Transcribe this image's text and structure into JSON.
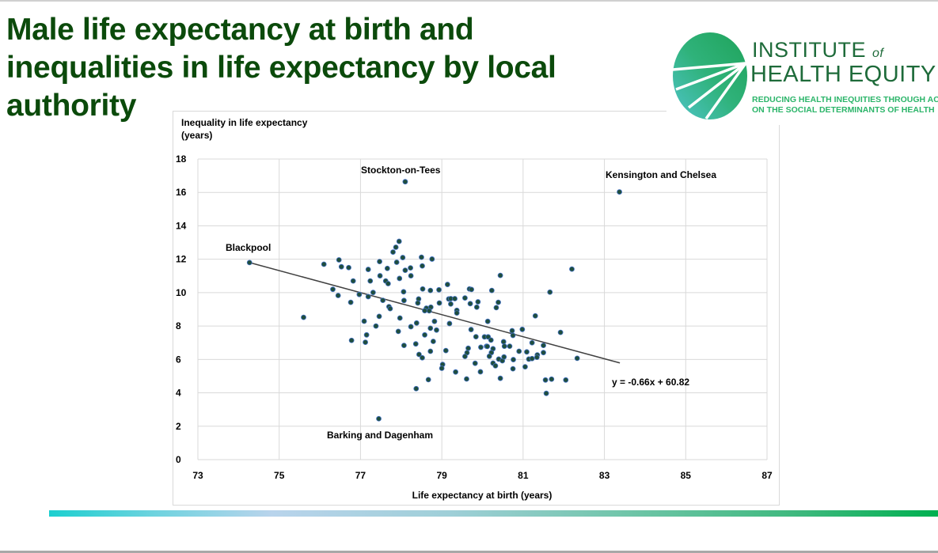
{
  "slide": {
    "title": "Male life expectancy at birth and inequalities in life expectancy by local authority"
  },
  "logo": {
    "line1": "INSTITUTE",
    "line1_of": "of",
    "line2": "HEALTH EQUITY",
    "tagline1": "REDUCING HEALTH  INEQUITIES THROUGH ACTION",
    "tagline2": "ON THE SOCIAL DETERMINANTS OF HEALTH",
    "colors": {
      "dark": "#1e6b3a",
      "accent": "#2cb56a"
    }
  },
  "colors": {
    "title": "#0b4a0b",
    "marker": "#1f4e3d",
    "marker_edge": "#4472c4",
    "trendline": "#404040",
    "gridline": "#d9d9d9",
    "footer_gradient": [
      "#1ccfcf",
      "#b9d4ec",
      "#00b050"
    ]
  },
  "chart_data": {
    "type": "scatter",
    "title": "",
    "xlabel": "Life expectancy at birth (years)",
    "ylabel": "Inequality in life expectancy (years)",
    "ylabel_lines": [
      "Inequality in life expectancy",
      "(years)"
    ],
    "xlim": [
      73,
      87
    ],
    "ylim": [
      0,
      18
    ],
    "xticks": [
      73,
      75,
      77,
      79,
      81,
      83,
      85,
      87
    ],
    "yticks": [
      0,
      2,
      4,
      6,
      8,
      10,
      12,
      14,
      16,
      18
    ],
    "grid": true,
    "legend": "none",
    "trendline": {
      "slope": -0.66,
      "intercept": 60.82,
      "x_range": [
        74.27,
        83.38
      ],
      "label": "y = -0.66x + 60.82"
    },
    "annotations": [
      {
        "text": "Stockton-on-Tees",
        "x": 78.1,
        "y": 16.64
      },
      {
        "text": "Kensington and Chelsea",
        "x": 83.37,
        "y": 16.03
      },
      {
        "text": "Blackpool",
        "x": 74.27,
        "y": 11.8
      },
      {
        "text": "Barking and Dagenham",
        "x": 77.45,
        "y": 2.45
      }
    ],
    "points": [
      [
        74.27,
        11.8
      ],
      [
        78.1,
        16.64
      ],
      [
        83.37,
        16.03
      ],
      [
        77.45,
        2.45
      ],
      [
        75.6,
        8.52
      ],
      [
        76.1,
        11.7
      ],
      [
        76.47,
        11.96
      ],
      [
        76.53,
        11.55
      ],
      [
        76.71,
        11.5
      ],
      [
        76.82,
        10.7
      ],
      [
        76.32,
        10.2
      ],
      [
        76.45,
        9.83
      ],
      [
        76.97,
        9.89
      ],
      [
        76.76,
        9.42
      ],
      [
        77.09,
        8.29
      ],
      [
        77.38,
        8.0
      ],
      [
        77.46,
        8.58
      ],
      [
        76.78,
        7.14
      ],
      [
        77.15,
        7.47
      ],
      [
        77.12,
        7.03
      ],
      [
        77.19,
        11.39
      ],
      [
        77.47,
        11.86
      ],
      [
        77.24,
        10.7
      ],
      [
        77.48,
        11.01
      ],
      [
        77.66,
        11.45
      ],
      [
        77.62,
        10.7
      ],
      [
        77.68,
        10.54
      ],
      [
        77.31,
        10.01
      ],
      [
        77.19,
        9.76
      ],
      [
        77.55,
        9.54
      ],
      [
        77.7,
        9.16
      ],
      [
        77.73,
        9.04
      ],
      [
        77.8,
        12.43
      ],
      [
        77.87,
        12.72
      ],
      [
        77.95,
        13.07
      ],
      [
        77.89,
        11.82
      ],
      [
        78.04,
        12.1
      ],
      [
        78.1,
        11.34
      ],
      [
        77.96,
        10.85
      ],
      [
        78.23,
        11.48
      ],
      [
        78.24,
        11.01
      ],
      [
        78.06,
        10.05
      ],
      [
        78.07,
        9.53
      ],
      [
        77.97,
        8.48
      ],
      [
        77.93,
        7.68
      ],
      [
        78.24,
        7.96
      ],
      [
        78.07,
        6.84
      ],
      [
        78.5,
        12.12
      ],
      [
        78.76,
        12.01
      ],
      [
        78.52,
        11.6
      ],
      [
        78.53,
        10.22
      ],
      [
        78.72,
        10.13
      ],
      [
        78.93,
        10.17
      ],
      [
        79.14,
        10.49
      ],
      [
        78.43,
        9.62
      ],
      [
        78.41,
        9.38
      ],
      [
        78.94,
        9.38
      ],
      [
        79.17,
        9.62
      ],
      [
        79.22,
        9.64
      ],
      [
        79.32,
        9.64
      ],
      [
        79.22,
        9.32
      ],
      [
        79.57,
        9.68
      ],
      [
        79.68,
        10.22
      ],
      [
        79.73,
        10.19
      ],
      [
        79.7,
        9.34
      ],
      [
        79.89,
        9.45
      ],
      [
        79.86,
        9.13
      ],
      [
        80.23,
        10.13
      ],
      [
        80.44,
        11.03
      ],
      [
        80.39,
        9.42
      ],
      [
        80.34,
        9.1
      ],
      [
        78.62,
        9.07
      ],
      [
        78.73,
        9.13
      ],
      [
        78.58,
        8.92
      ],
      [
        78.69,
        8.91
      ],
      [
        79.37,
        8.94
      ],
      [
        79.37,
        8.78
      ],
      [
        78.82,
        8.28
      ],
      [
        79.19,
        8.15
      ],
      [
        80.13,
        8.28
      ],
      [
        78.38,
        8.18
      ],
      [
        78.72,
        7.87
      ],
      [
        78.87,
        7.76
      ],
      [
        78.58,
        7.47
      ],
      [
        79.72,
        7.79
      ],
      [
        79.84,
        7.36
      ],
      [
        80.05,
        7.35
      ],
      [
        80.14,
        7.35
      ],
      [
        80.21,
        7.16
      ],
      [
        80.73,
        7.72
      ],
      [
        80.75,
        7.44
      ],
      [
        80.52,
        7.06
      ],
      [
        80.54,
        6.79
      ],
      [
        80.67,
        6.79
      ],
      [
        79.96,
        6.73
      ],
      [
        80.1,
        6.79
      ],
      [
        80.26,
        6.64
      ],
      [
        79.65,
        6.67
      ],
      [
        78.79,
        7.08
      ],
      [
        78.36,
        6.93
      ],
      [
        79.1,
        6.53
      ],
      [
        78.72,
        6.49
      ],
      [
        78.44,
        6.3
      ],
      [
        78.52,
        6.1
      ],
      [
        79.02,
        5.7
      ],
      [
        79.0,
        5.47
      ],
      [
        79.34,
        5.25
      ],
      [
        78.67,
        4.79
      ],
      [
        78.37,
        4.25
      ],
      [
        79.62,
        6.4
      ],
      [
        79.57,
        6.18
      ],
      [
        79.82,
        5.77
      ],
      [
        79.95,
        5.26
      ],
      [
        79.61,
        4.83
      ],
      [
        80.12,
        6.78
      ],
      [
        80.22,
        6.41
      ],
      [
        80.17,
        6.19
      ],
      [
        80.26,
        5.78
      ],
      [
        80.32,
        5.62
      ],
      [
        80.4,
        6.02
      ],
      [
        80.49,
        5.92
      ],
      [
        80.53,
        6.15
      ],
      [
        80.44,
        4.87
      ],
      [
        80.75,
        5.44
      ],
      [
        80.76,
        5.99
      ],
      [
        82.2,
        11.41
      ],
      [
        81.66,
        10.03
      ],
      [
        81.3,
        8.61
      ],
      [
        81.92,
        7.62
      ],
      [
        80.98,
        7.8
      ],
      [
        81.22,
        7.0
      ],
      [
        81.5,
        6.84
      ],
      [
        80.9,
        6.49
      ],
      [
        81.09,
        6.45
      ],
      [
        81.35,
        6.27
      ],
      [
        81.34,
        6.13
      ],
      [
        81.5,
        6.41
      ],
      [
        81.14,
        6.02
      ],
      [
        81.22,
        6.05
      ],
      [
        82.33,
        6.07
      ],
      [
        81.05,
        5.56
      ],
      [
        81.55,
        4.77
      ],
      [
        81.7,
        4.82
      ],
      [
        82.05,
        4.77
      ],
      [
        81.57,
        3.97
      ]
    ]
  }
}
